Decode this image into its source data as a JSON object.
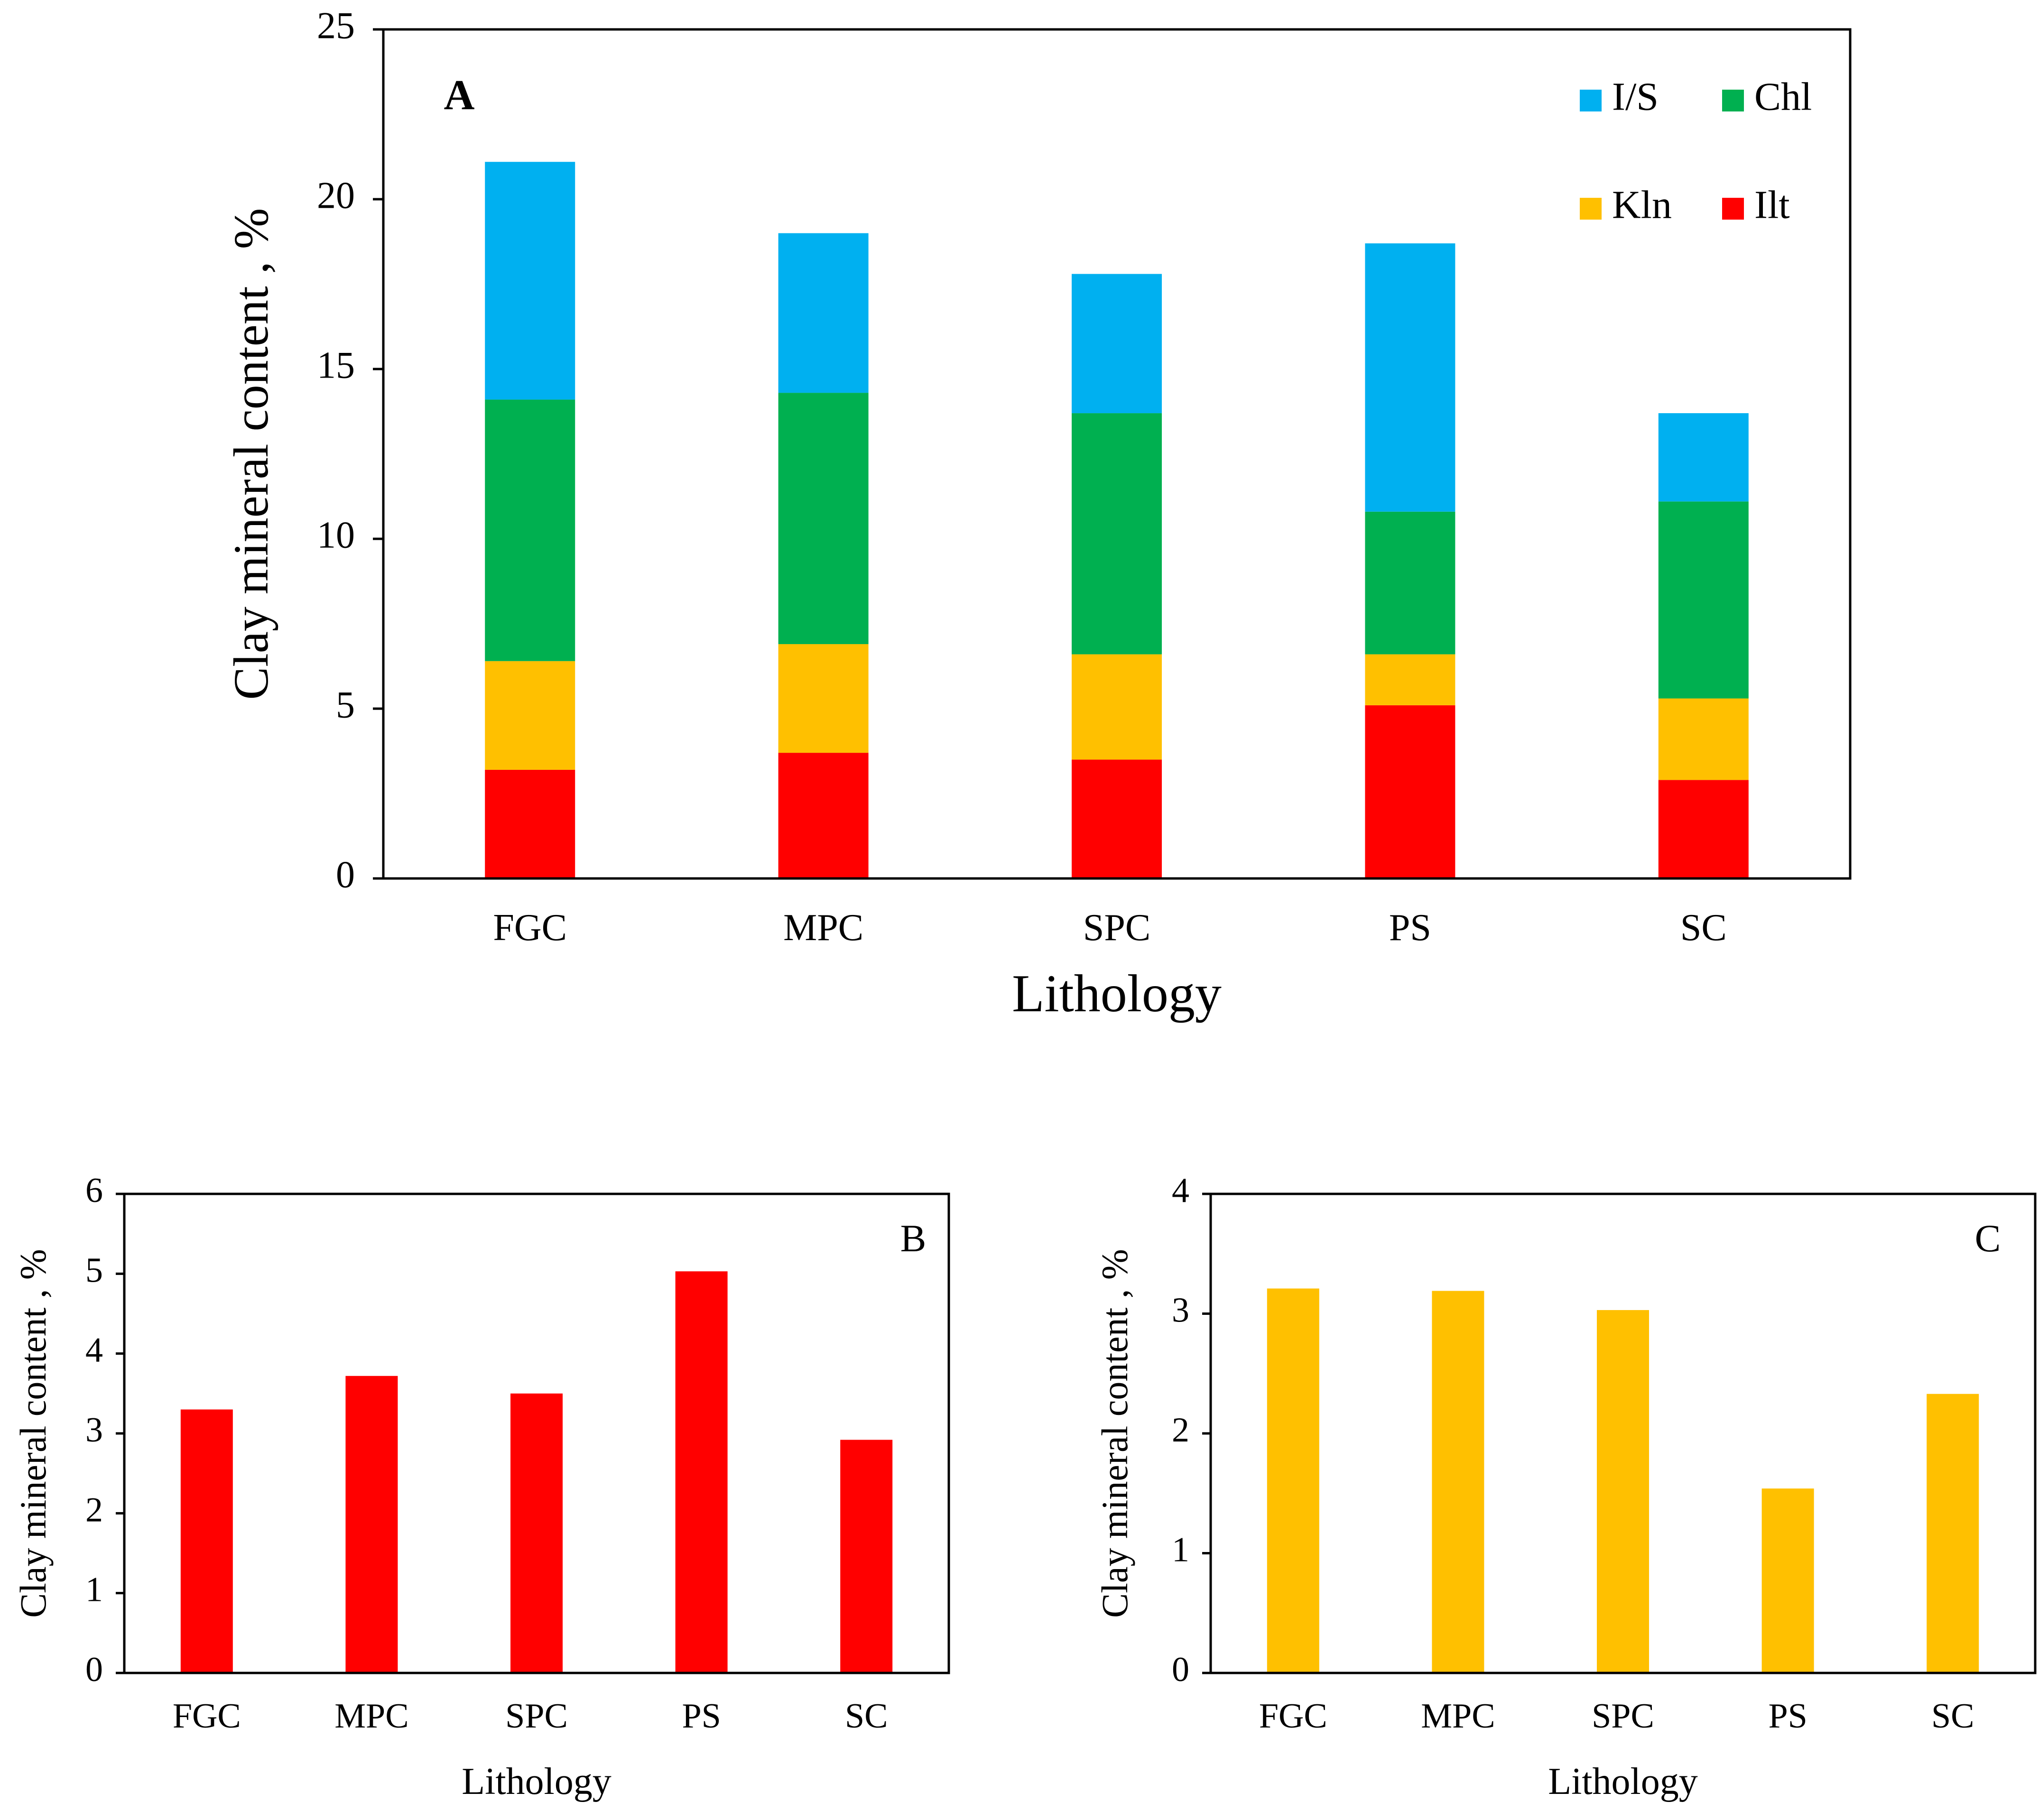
{
  "chart_data": [
    {
      "panel": "A",
      "type": "bar",
      "stacked": true,
      "title": "",
      "xlabel": "Lithology",
      "ylabel": "Clay mineral content , %",
      "categories": [
        "FGC",
        "MPC",
        "SPC",
        "PS",
        "SC"
      ],
      "ylim": [
        0,
        25
      ],
      "yticks": [
        0,
        5,
        10,
        15,
        20,
        25
      ],
      "grid": false,
      "legend_position": "top-right",
      "series": [
        {
          "name": "Ilt",
          "color": "#FF0000",
          "values": [
            3.2,
            3.7,
            3.5,
            5.1,
            2.9
          ]
        },
        {
          "name": "Kln",
          "color": "#FFC000",
          "values": [
            3.2,
            3.2,
            3.1,
            1.5,
            2.4
          ]
        },
        {
          "name": "Chl",
          "color": "#00B050",
          "values": [
            7.7,
            7.4,
            7.1,
            4.2,
            5.8
          ]
        },
        {
          "name": "I/S",
          "color": "#00B0F0",
          "values": [
            7.0,
            4.7,
            4.1,
            7.9,
            2.6
          ]
        }
      ],
      "legend_order": [
        "I/S",
        "Chl",
        "Kln",
        "Ilt"
      ]
    },
    {
      "panel": "B",
      "type": "bar",
      "title": "",
      "xlabel": "Lithology",
      "ylabel": "Clay mineral content , %",
      "categories": [
        "FGC",
        "MPC",
        "SPC",
        "PS",
        "SC"
      ],
      "ylim": [
        0,
        6
      ],
      "yticks": [
        0,
        1,
        2,
        3,
        4,
        5,
        6
      ],
      "grid": false,
      "series": [
        {
          "name": "Ilt",
          "color": "#FF0000",
          "values": [
            3.3,
            3.72,
            3.5,
            5.03,
            2.92
          ]
        }
      ]
    },
    {
      "panel": "C",
      "type": "bar",
      "title": "",
      "xlabel": "Lithology",
      "ylabel": "Clay mineral content , %",
      "categories": [
        "FGC",
        "MPC",
        "SPC",
        "PS",
        "SC"
      ],
      "ylim": [
        0,
        4
      ],
      "yticks": [
        0,
        1,
        2,
        3,
        4
      ],
      "grid": false,
      "series": [
        {
          "name": "Kln",
          "color": "#FFC000",
          "values": [
            3.21,
            3.19,
            3.03,
            1.54,
            2.33
          ]
        }
      ]
    }
  ]
}
